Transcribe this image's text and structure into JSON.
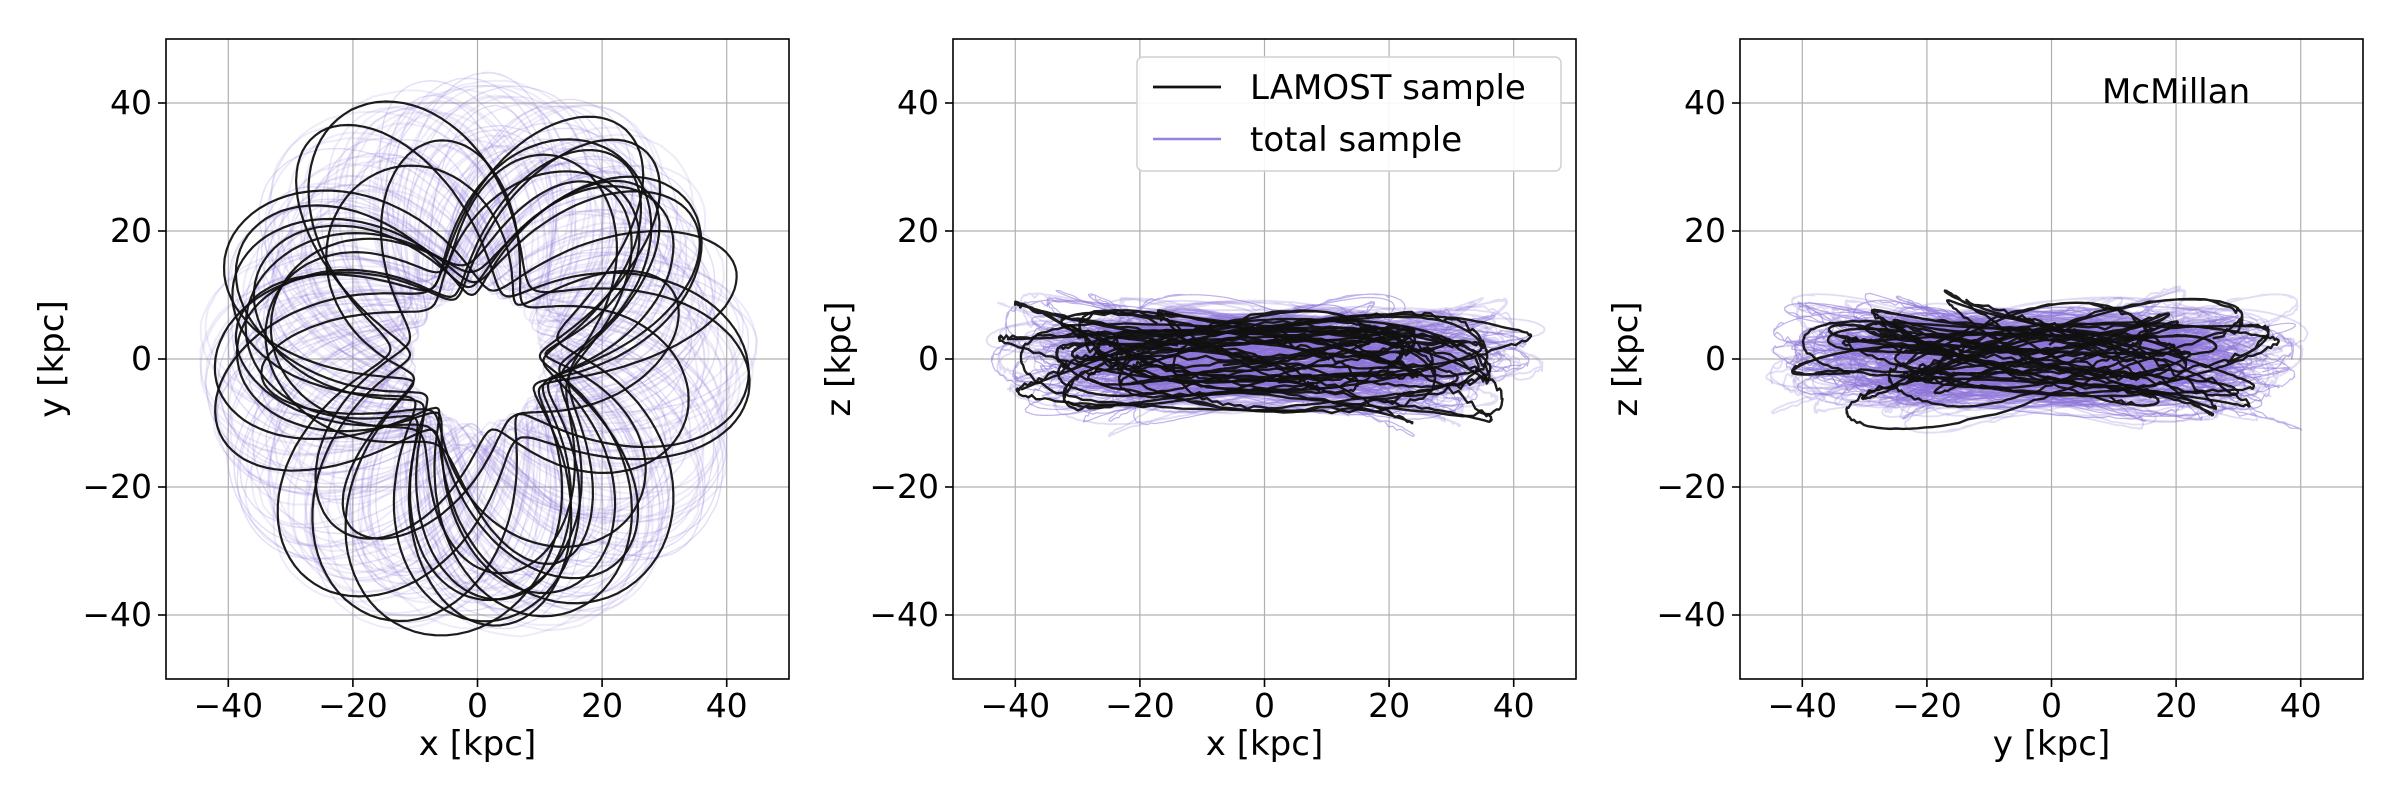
{
  "figure": {
    "description_text": ""
  },
  "chart_data": [
    {
      "type": "line",
      "panel": "left",
      "xlabel": "x [kpc]",
      "ylabel": "y [kpc]",
      "xlim": [
        -50,
        50
      ],
      "ylim": [
        -50,
        50
      ],
      "xticks": [
        -40,
        -20,
        0,
        20,
        40
      ],
      "yticks": [
        -40,
        -20,
        0,
        20,
        40
      ],
      "xtick_labels": [
        "−40",
        "−20",
        "0",
        "20",
        "40"
      ],
      "ytick_labels": [
        "−40",
        "−20",
        "0",
        "20",
        "40"
      ],
      "grid": true,
      "annotation": "",
      "legend": null,
      "series": [
        {
          "name": "LAMOST sample",
          "color": "#111111",
          "style": "trefoil-rosette",
          "note": "black rosette orbit tracks"
        },
        {
          "name": "total sample",
          "color": "#8c73d8",
          "style": "trefoil-rosette",
          "note": "lighter purple rosette tracks"
        }
      ]
    },
    {
      "type": "line",
      "panel": "middle",
      "xlabel": "x [kpc]",
      "ylabel": "z [kpc]",
      "xlim": [
        -50,
        50
      ],
      "ylim": [
        -50,
        50
      ],
      "xticks": [
        -40,
        -20,
        0,
        20,
        40
      ],
      "yticks": [
        -40,
        -20,
        0,
        20,
        40
      ],
      "xtick_labels": [
        "−40",
        "−20",
        "0",
        "20",
        "40"
      ],
      "ytick_labels": [
        "−40",
        "−20",
        "0",
        "20",
        "40"
      ],
      "grid": true,
      "annotation": "",
      "legend": {
        "placement": "top-right",
        "entries": [
          {
            "label": "LAMOST sample",
            "color": "#111111"
          },
          {
            "label": "total sample",
            "color": "#8c73d8"
          }
        ]
      },
      "series": [
        {
          "name": "LAMOST sample",
          "color": "#111111",
          "style": "flattened-loops"
        },
        {
          "name": "total sample",
          "color": "#8c73d8",
          "style": "flattened-loops"
        }
      ]
    },
    {
      "type": "line",
      "panel": "right",
      "xlabel": "y [kpc]",
      "ylabel": "z [kpc]",
      "xlim": [
        -50,
        50
      ],
      "ylim": [
        -50,
        50
      ],
      "xticks": [
        -40,
        -20,
        0,
        20,
        40
      ],
      "yticks": [
        -40,
        -20,
        0,
        20,
        40
      ],
      "xtick_labels": [
        "−40",
        "−20",
        "0",
        "20",
        "40"
      ],
      "ytick_labels": [
        "−40",
        "−20",
        "0",
        "20",
        "40"
      ],
      "grid": true,
      "annotation": "McMillan",
      "legend": null,
      "series": [
        {
          "name": "LAMOST sample",
          "color": "#111111",
          "style": "flattened-loops"
        },
        {
          "name": "total sample",
          "color": "#8c73d8",
          "style": "flattened-loops"
        }
      ]
    }
  ]
}
